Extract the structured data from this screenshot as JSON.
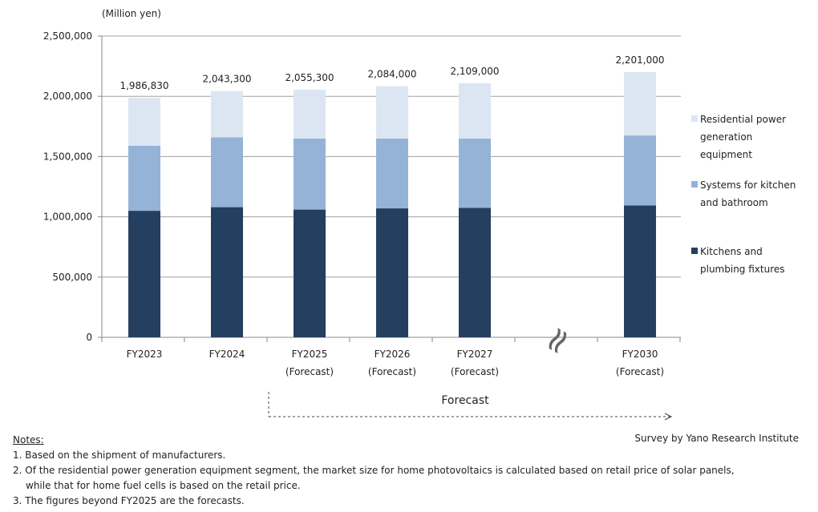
{
  "chart_data": {
    "type": "bar",
    "stacked": true,
    "unit_label": "(Million  yen)",
    "categories": [
      "FY2023",
      "FY2024",
      "FY2025",
      "FY2026",
      "FY2027",
      "FY2030"
    ],
    "category_sublabels": [
      "",
      "",
      "(Forecast)",
      "(Forecast)",
      "(Forecast)",
      "(Forecast)"
    ],
    "series": [
      {
        "name": "Kitchens and plumbing fixtures",
        "color": "#243f60",
        "values": [
          1050000,
          1080000,
          1060000,
          1070000,
          1075000,
          1095000
        ]
      },
      {
        "name": "Systems for kitchen and bathroom",
        "color": "#95b3d7",
        "values": [
          540000,
          580000,
          590000,
          580000,
          575000,
          580000
        ]
      },
      {
        "name": "Residential power generation equipment",
        "color": "#dce6f2",
        "values": [
          396830,
          383300,
          405300,
          434000,
          459000,
          526000
        ]
      }
    ],
    "totals": [
      "1,986,830",
      "2,043,300",
      "2,055,300",
      "2,084,000",
      "2,109,000",
      "2,201,000"
    ],
    "legend_lines": [
      [
        "Residential power",
        "generation",
        "equipment"
      ],
      [
        "Systems for kitchen",
        "and bathroom"
      ],
      [
        "Kitchens and",
        "plumbing fixtures"
      ]
    ],
    "y_ticks": [
      "0",
      "500,000",
      "1,000,000",
      "1,500,000",
      "2,000,000",
      "2,500,000"
    ],
    "ylim": [
      0,
      2500000
    ],
    "forecast_label": "Forecast",
    "break_symbol": "≈"
  },
  "notes": {
    "heading": "Notes:",
    "items": [
      "1. Based on the shipment of manufacturers.",
      "2. Of the residential power generation equipment segment, the market size for home photovoltaics is calculated based on retail price of solar panels,",
      "while that for home fuel cells is based on the retail price.",
      "3. The figures beyond FY2025 are the forecasts."
    ]
  },
  "source": "Survey by Yano Research Institute"
}
